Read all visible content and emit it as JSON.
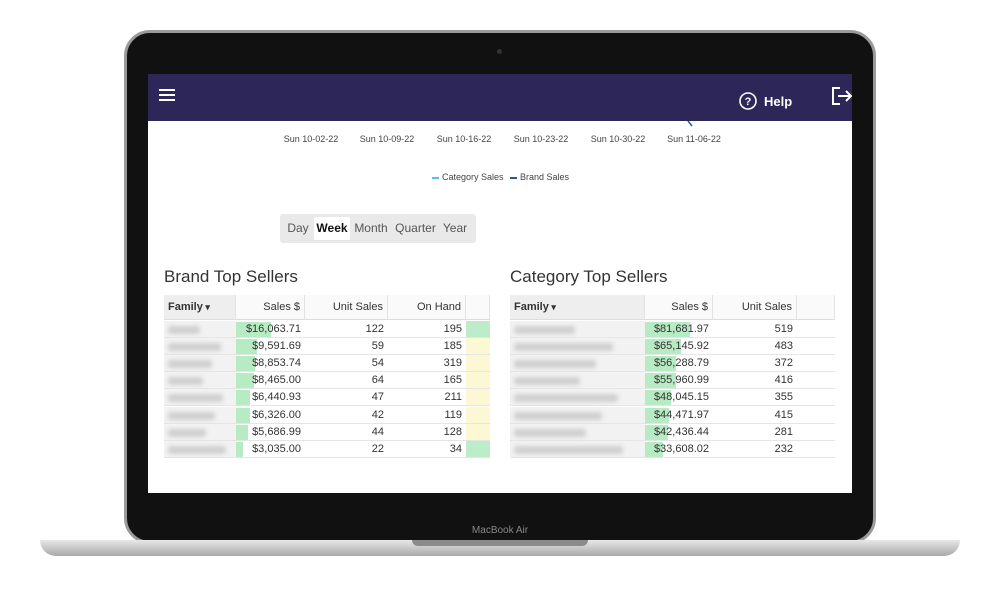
{
  "header": {
    "help": "Help"
  },
  "chart": {
    "x_labels": [
      "Sun 10-02-22",
      "Sun 10-09-22",
      "Sun 10-16-22",
      "Sun 10-23-22",
      "Sun 10-30-22",
      "Sun 11-06-22"
    ],
    "legend": [
      {
        "name": "Category Sales",
        "color": "#5bc0de"
      },
      {
        "name": "Brand Sales",
        "color": "#1f5f8b"
      }
    ]
  },
  "period_toggle": {
    "options": [
      "Day",
      "Week",
      "Month",
      "Quarter",
      "Year"
    ],
    "selected_index": 1
  },
  "brand_table": {
    "title": "Brand Top Sellers",
    "columns": [
      "Family",
      "Sales $",
      "Unit Sales",
      "On Hand"
    ],
    "rows": [
      [
        "$16,063.71",
        122,
        195
      ],
      [
        "$9,591.69",
        59,
        185
      ],
      [
        "$8,853.74",
        54,
        319
      ],
      [
        "$8,465.00",
        64,
        165
      ],
      [
        "$6,440.93",
        47,
        211
      ],
      [
        "$6,326.00",
        42,
        119
      ],
      [
        "$5,686.99",
        44,
        128
      ],
      [
        "$3,035.00",
        22,
        34
      ]
    ]
  },
  "category_table": {
    "title": "Category Top Sellers",
    "columns": [
      "Family",
      "Sales $",
      "Unit Sales"
    ],
    "rows": [
      [
        "$81,681.97",
        519
      ],
      [
        "$65,145.92",
        483
      ],
      [
        "$56,288.79",
        372
      ],
      [
        "$55,960.99",
        416
      ],
      [
        "$48,045.15",
        355
      ],
      [
        "$44,471.97",
        415
      ],
      [
        "$42,436.44",
        281
      ],
      [
        "$33,608.02",
        232
      ]
    ]
  },
  "device_label": "MacBook Air"
}
